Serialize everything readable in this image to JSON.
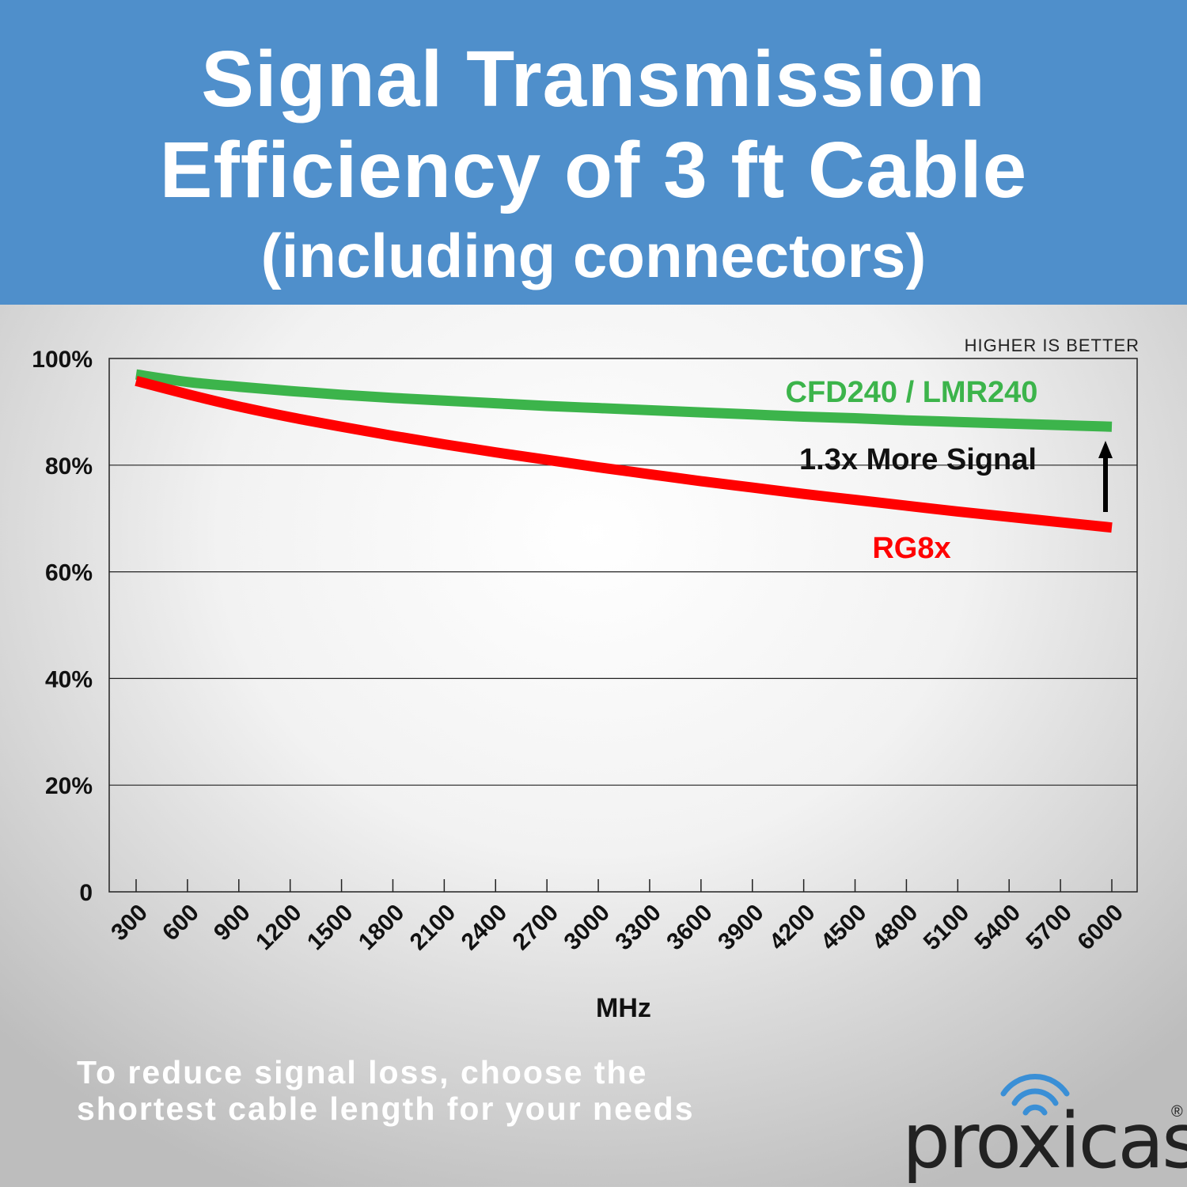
{
  "header": {
    "title_line1": "Signal Transmission",
    "title_line2": "Efficiency of 3 ft Cable",
    "subtitle": "(including connectors)"
  },
  "chart_data": {
    "type": "line",
    "title": "Signal Transmission Efficiency of 3 ft Cable (including connectors)",
    "xlabel": "MHz",
    "ylabel": "",
    "x": [
      300,
      600,
      900,
      1200,
      1500,
      1800,
      2100,
      2400,
      2700,
      3000,
      3300,
      3600,
      3900,
      4200,
      4500,
      4800,
      5100,
      5400,
      5700,
      6000
    ],
    "ylim": [
      0,
      100
    ],
    "yticks": [
      0,
      20,
      40,
      60,
      80,
      100
    ],
    "ytick_labels": [
      "0",
      "20%",
      "40%",
      "60%",
      "80%",
      "100%"
    ],
    "grid": true,
    "series": [
      {
        "name": "CFD240 / LMR240",
        "color": "#3cb44b",
        "values": [
          97.0,
          95.6,
          94.7,
          93.9,
          93.2,
          92.6,
          92.1,
          91.6,
          91.1,
          90.7,
          90.3,
          89.9,
          89.5,
          89.1,
          88.8,
          88.4,
          88.1,
          87.8,
          87.5,
          87.2
        ]
      },
      {
        "name": "RG8x",
        "color": "#ff0000",
        "values": [
          95.8,
          93.3,
          91.0,
          89.0,
          87.2,
          85.5,
          83.9,
          82.4,
          81.0,
          79.6,
          78.3,
          77.0,
          75.8,
          74.6,
          73.5,
          72.4,
          71.3,
          70.3,
          69.3,
          68.3
        ]
      }
    ],
    "annotations": {
      "higher_is_better": "HIGHER IS BETTER",
      "more_signal": "1.3x More Signal"
    }
  },
  "footer": {
    "line1": "To reduce signal loss, choose the",
    "line2": "shortest cable length for your needs"
  },
  "logo": {
    "text": "proxicast",
    "registered": "®"
  }
}
